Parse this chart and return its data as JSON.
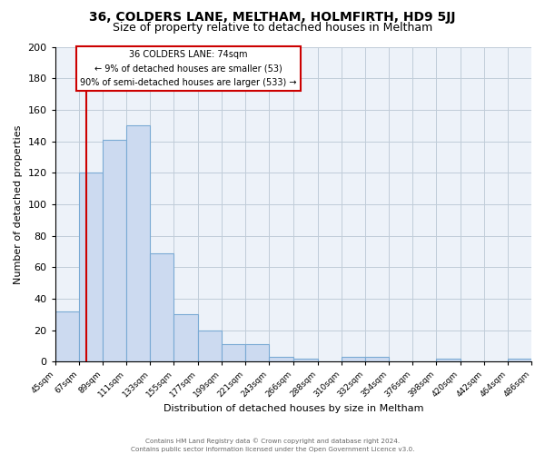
{
  "title": "36, COLDERS LANE, MELTHAM, HOLMFIRTH, HD9 5JJ",
  "subtitle": "Size of property relative to detached houses in Meltham",
  "xlabel": "Distribution of detached houses by size in Meltham",
  "ylabel": "Number of detached properties",
  "bin_labels": [
    "45sqm",
    "67sqm",
    "89sqm",
    "111sqm",
    "133sqm",
    "155sqm",
    "177sqm",
    "199sqm",
    "221sqm",
    "243sqm",
    "266sqm",
    "288sqm",
    "310sqm",
    "332sqm",
    "354sqm",
    "376sqm",
    "398sqm",
    "420sqm",
    "442sqm",
    "464sqm",
    "486sqm"
  ],
  "bin_edges": [
    45,
    67,
    89,
    111,
    133,
    155,
    177,
    199,
    221,
    243,
    266,
    288,
    310,
    332,
    354,
    376,
    398,
    420,
    442,
    464,
    486
  ],
  "bar_heights": [
    32,
    120,
    141,
    150,
    69,
    30,
    20,
    11,
    11,
    3,
    2,
    0,
    3,
    3,
    0,
    0,
    2,
    0,
    0,
    2
  ],
  "bar_color": "#ccdaf0",
  "bar_edge_color": "#7aaad4",
  "vline_x": 74,
  "vline_color": "#cc0000",
  "annotation_line1": "36 COLDERS LANE: 74sqm",
  "annotation_line2": "← 9% of detached houses are smaller (53)",
  "annotation_line3": "90% of semi-detached houses are larger (533) →",
  "annotation_box_color": "#cc0000",
  "ylim": [
    0,
    200
  ],
  "yticks": [
    0,
    20,
    40,
    60,
    80,
    100,
    120,
    140,
    160,
    180,
    200
  ],
  "grid_color": "#c0ccd8",
  "background_color": "#edf2f9",
  "footer_line1": "Contains HM Land Registry data © Crown copyright and database right 2024.",
  "footer_line2": "Contains public sector information licensed under the Open Government Licence v3.0.",
  "title_fontsize": 10,
  "subtitle_fontsize": 9
}
